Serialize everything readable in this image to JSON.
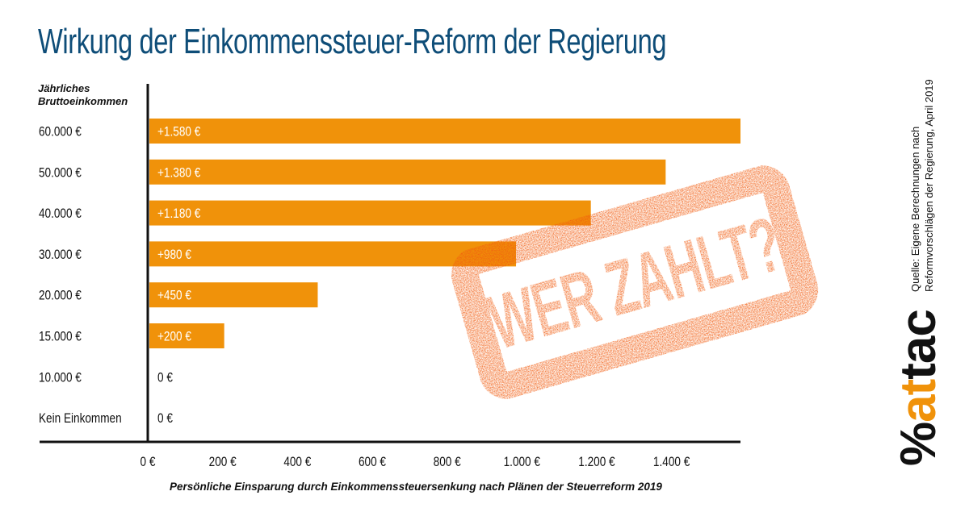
{
  "title": "Wirkung der Einkommenssteuer-Reform der Regierung",
  "source_line1": "Quelle: Eigene Berechnungen nach",
  "source_line2": "Reformvorschlägen der Regierung, April 2019",
  "logo": {
    "percent": "%",
    "orange": "at",
    "black": "tac"
  },
  "stamp": {
    "text": "WER ZAHLT?"
  },
  "colors": {
    "title": "#0e4d78",
    "bar": "#f0920a",
    "stamp": "#f15a0e",
    "axis": "#111111"
  },
  "chart_data": {
    "type": "bar",
    "orientation": "horizontal",
    "title": "Wirkung der Einkommenssteuer-Reform der Regierung",
    "ylabel_line1": "Jährliches",
    "ylabel_line2": "Bruttoeinkommen",
    "xlabel": "Persönliche Einsparung durch Einkommenssteuersenkung nach Plänen der Steuerreform 2019",
    "xlim": [
      0,
      1580
    ],
    "grid": false,
    "categories": [
      "60.000 €",
      "50.000 €",
      "40.000 €",
      "30.000 €",
      "20.000 €",
      "15.000 €",
      "10.000 €",
      "Kein Einkommen"
    ],
    "values": [
      1580,
      1380,
      1180,
      980,
      450,
      200,
      0,
      0
    ],
    "value_labels": [
      "+1.580 €",
      "+1.380 €",
      "+1.180 €",
      "+980 €",
      "+450 €",
      "+200 €",
      "0 €",
      "0 €"
    ],
    "x_ticks": [
      0,
      200,
      400,
      600,
      800,
      1000,
      1200,
      1400
    ],
    "x_tick_labels": [
      "0 €",
      "200 €",
      "400 €",
      "600 €",
      "800 €",
      "1.000 €",
      "1.200 €",
      "1.400 €"
    ]
  }
}
